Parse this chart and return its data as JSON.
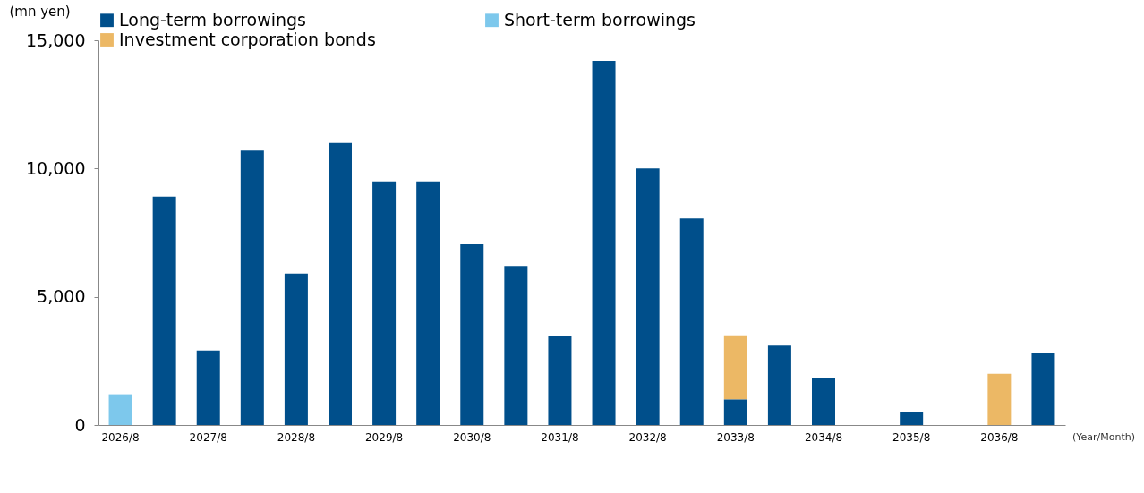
{
  "chart_data": {
    "type": "bar",
    "stacked": true,
    "ylabel": "(mn yen)",
    "annotations": [
      "(Year/Month)"
    ],
    "categories": [
      "2026/8",
      null,
      "2027/8",
      null,
      "2028/8",
      null,
      "2029/8",
      null,
      "2030/8",
      null,
      "2031/8",
      null,
      "2032/8",
      null,
      "2033/8",
      null,
      "2034/8",
      null,
      "2035/8",
      null,
      "2036/8",
      null
    ],
    "series": [
      {
        "name": "Long-term borrowings",
        "color": "#004f8b",
        "values": [
          null,
          8900,
          2900,
          10700,
          5900,
          11000,
          9500,
          9500,
          7050,
          6200,
          3450,
          14200,
          10000,
          8050,
          1000,
          3100,
          1850,
          null,
          500,
          null,
          null,
          2800
        ]
      },
      {
        "name": "Short-term borrowings",
        "color": "#7dc8ec",
        "values": [
          1200,
          null,
          null,
          null,
          null,
          null,
          null,
          null,
          null,
          null,
          null,
          null,
          null,
          null,
          null,
          null,
          null,
          null,
          null,
          null,
          null,
          null
        ]
      },
      {
        "name": "Investment corporation bonds",
        "color": "#ecb865",
        "values": [
          null,
          null,
          null,
          null,
          null,
          null,
          null,
          null,
          null,
          null,
          null,
          null,
          null,
          null,
          2500,
          null,
          null,
          null,
          null,
          null,
          2000,
          null
        ]
      }
    ],
    "ylim": [
      0,
      15000
    ],
    "yticks": [
      {
        "value": 0,
        "label": "0"
      },
      {
        "value": 5000,
        "label": "5,000"
      },
      {
        "value": 10000,
        "label": "10,000"
      },
      {
        "value": 15000,
        "label": "15,000"
      }
    ],
    "grid": false,
    "legend": "top"
  }
}
